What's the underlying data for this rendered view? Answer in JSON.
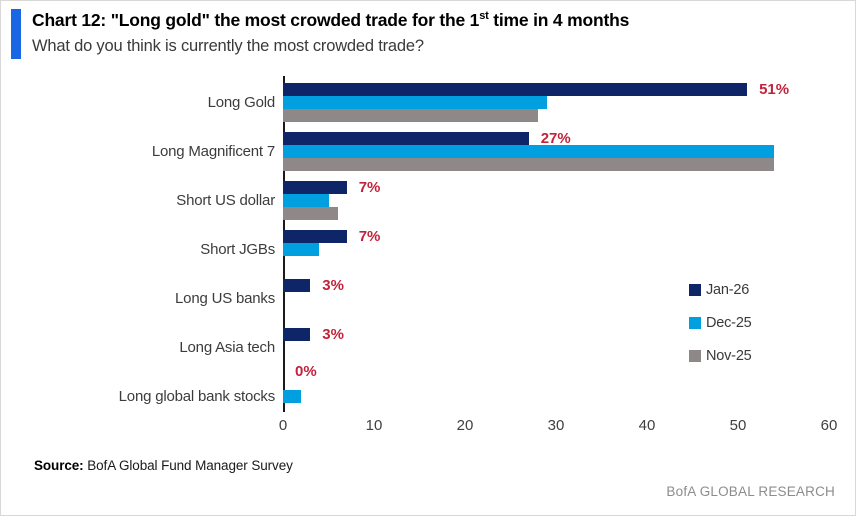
{
  "header": {
    "title_prefix": "Chart 12: \"Long gold\" the most crowded trade for the 1",
    "title_sup": "st",
    "title_suffix": " time in 4 months",
    "subtitle": "What do you think is currently the most crowded trade?"
  },
  "footer": {
    "source_label": "Source:",
    "source_text": " BofA Global Fund Manager Survey",
    "brand": "BofA GLOBAL RESEARCH"
  },
  "colors": {
    "accent": "#1A67E6",
    "jan26": "#0E2567",
    "dec25": "#009FE0",
    "nov25": "#8F8888",
    "data_label": "#C2233B",
    "axis": "#1a1a1a"
  },
  "chart_data": {
    "type": "bar",
    "orientation": "horizontal",
    "title": "Chart 12: \"Long gold\" the most crowded trade for the 1st time in 4 months",
    "subtitle": "What do you think is currently the most crowded trade?",
    "categories": [
      "Long Gold",
      "Long Magnificent 7",
      "Short US dollar",
      "Short JGBs",
      "Long US banks",
      "Long Asia tech",
      "Long global bank stocks"
    ],
    "series": [
      {
        "name": "Jan-26",
        "color": "#0E2567",
        "values": [
          51,
          27,
          7,
          7,
          3,
          3,
          0
        ]
      },
      {
        "name": "Dec-25",
        "color": "#009FE0",
        "values": [
          29,
          54,
          5,
          4,
          0,
          0,
          2
        ]
      },
      {
        "name": "Nov-25",
        "color": "#8F8888",
        "values": [
          28,
          54,
          6,
          0,
          0,
          0,
          0
        ]
      }
    ],
    "data_labels": [
      "51%",
      "27%",
      "7%",
      "7%",
      "3%",
      "3%",
      "0%"
    ],
    "data_label_series": "Jan-26",
    "xlim": [
      0,
      60
    ],
    "xticks": [
      0,
      10,
      20,
      30,
      40,
      50,
      60
    ],
    "grid": false,
    "legend_position": "right"
  }
}
